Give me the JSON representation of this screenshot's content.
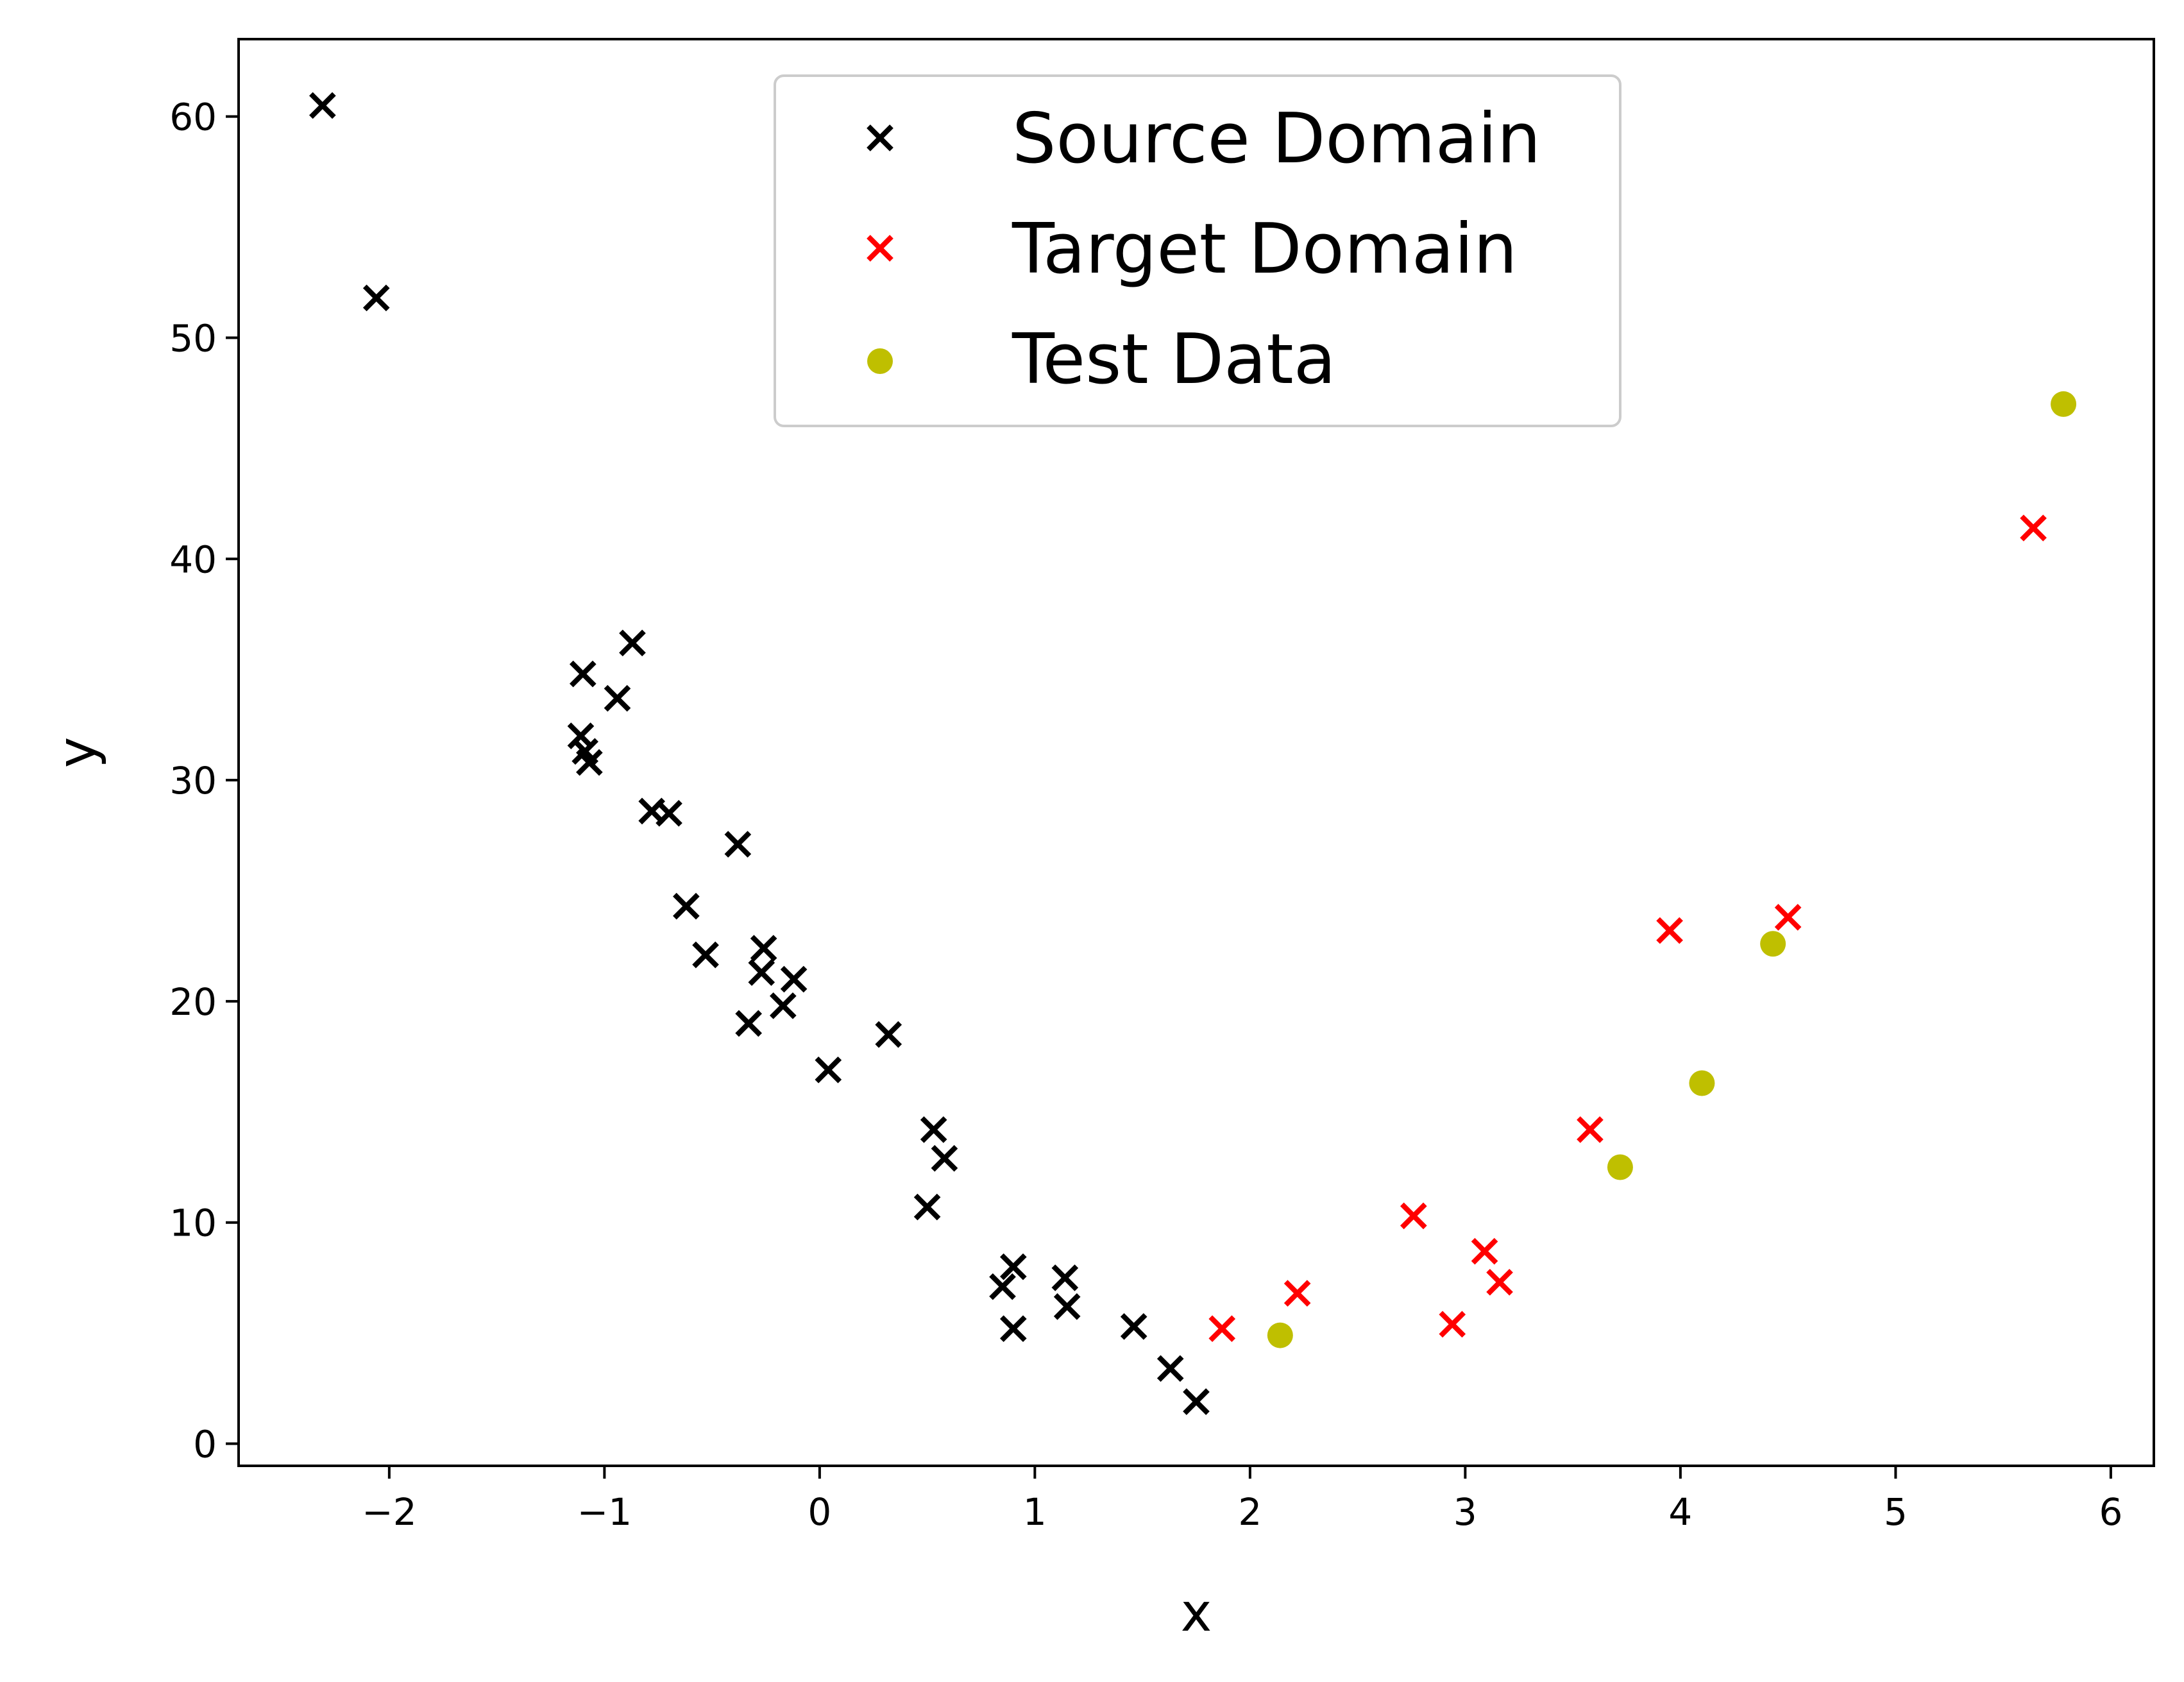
{
  "chart_data": {
    "type": "scatter",
    "title": "",
    "xlabel": "x",
    "ylabel": "y",
    "xlim": [
      -2.7,
      6.2
    ],
    "ylim": [
      -1.0,
      63.5
    ],
    "xticks": [
      -2,
      -1,
      0,
      1,
      2,
      3,
      4,
      5,
      6
    ],
    "xtick_labels": [
      "−2",
      "−1",
      "0",
      "1",
      "2",
      "3",
      "4",
      "5",
      "6"
    ],
    "yticks": [
      0,
      10,
      20,
      30,
      40,
      50,
      60
    ],
    "ytick_labels": [
      "0",
      "10",
      "20",
      "30",
      "40",
      "50",
      "60"
    ],
    "grid": false,
    "legend_position": "top-center",
    "series": [
      {
        "name": "Source Domain",
        "marker": "x",
        "color": "#000000",
        "points": [
          [
            -2.31,
            60.5
          ],
          [
            -2.06,
            51.8
          ],
          [
            -1.1,
            34.8
          ],
          [
            -1.11,
            32.0
          ],
          [
            -1.09,
            31.3
          ],
          [
            -1.07,
            30.8
          ],
          [
            -0.94,
            33.7
          ],
          [
            -0.87,
            36.2
          ],
          [
            -0.78,
            28.6
          ],
          [
            -0.7,
            28.5
          ],
          [
            -0.62,
            24.3
          ],
          [
            -0.53,
            22.1
          ],
          [
            -0.38,
            27.1
          ],
          [
            -0.33,
            19.0
          ],
          [
            -0.26,
            22.4
          ],
          [
            -0.27,
            21.3
          ],
          [
            -0.17,
            19.8
          ],
          [
            -0.12,
            21.0
          ],
          [
            0.04,
            16.9
          ],
          [
            0.32,
            18.5
          ],
          [
            0.53,
            14.2
          ],
          [
            0.58,
            12.9
          ],
          [
            0.5,
            10.7
          ],
          [
            0.85,
            7.1
          ],
          [
            0.9,
            8.0
          ],
          [
            0.9,
            5.2
          ],
          [
            1.14,
            7.5
          ],
          [
            1.15,
            6.2
          ],
          [
            1.46,
            5.3
          ],
          [
            1.63,
            3.4
          ],
          [
            1.75,
            1.9
          ]
        ]
      },
      {
        "name": "Target Domain",
        "marker": "x",
        "color": "#ff0000",
        "points": [
          [
            1.87,
            5.2
          ],
          [
            2.22,
            6.8
          ],
          [
            2.76,
            10.3
          ],
          [
            2.94,
            5.4
          ],
          [
            3.09,
            8.7
          ],
          [
            3.16,
            7.3
          ],
          [
            3.58,
            14.2
          ],
          [
            3.95,
            23.2
          ],
          [
            4.5,
            23.8
          ],
          [
            5.64,
            41.4
          ]
        ]
      },
      {
        "name": "Test Data",
        "marker": "o",
        "color": "#bfbf00",
        "points": [
          [
            2.14,
            4.9
          ],
          [
            3.72,
            12.5
          ],
          [
            4.1,
            16.3
          ],
          [
            4.43,
            22.6
          ],
          [
            5.78,
            47.0
          ]
        ]
      }
    ]
  }
}
